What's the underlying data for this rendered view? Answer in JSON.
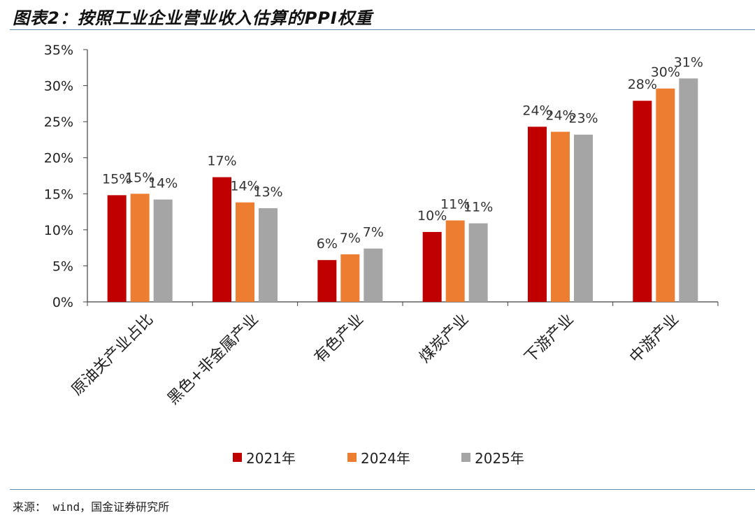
{
  "title": "图表2：按照工业企业营业收入估算的PPI权重",
  "source": "来源： wind，国金证券研究所",
  "chart_data": {
    "type": "bar",
    "categories": [
      "原油关产业占比",
      "黑色+非金属产业",
      "有色产业",
      "煤炭产业",
      "下游产业",
      "中游产业"
    ],
    "series": [
      {
        "name": "2021年",
        "color": "#C00000",
        "values": [
          14.8,
          17.3,
          5.8,
          9.7,
          24.3,
          27.9
        ],
        "labels": [
          "15%",
          "17%",
          "6%",
          "10%",
          "24%",
          "28%"
        ]
      },
      {
        "name": "2024年",
        "color": "#ED7D31",
        "values": [
          15.0,
          13.8,
          6.6,
          11.3,
          23.6,
          29.6
        ],
        "labels": [
          "15%",
          "14%",
          "7%",
          "11%",
          "24%",
          "30%"
        ]
      },
      {
        "name": "2025年",
        "color": "#A5A5A5",
        "values": [
          14.2,
          13.0,
          7.4,
          10.9,
          23.2,
          31.0
        ],
        "labels": [
          "14%",
          "13%",
          "7%",
          "11%",
          "23%",
          "31%"
        ]
      }
    ],
    "yticks": [
      "0%",
      "5%",
      "10%",
      "15%",
      "20%",
      "25%",
      "30%",
      "35%"
    ],
    "ylim": [
      0,
      35
    ],
    "legend_position": "bottom",
    "grid": false
  }
}
